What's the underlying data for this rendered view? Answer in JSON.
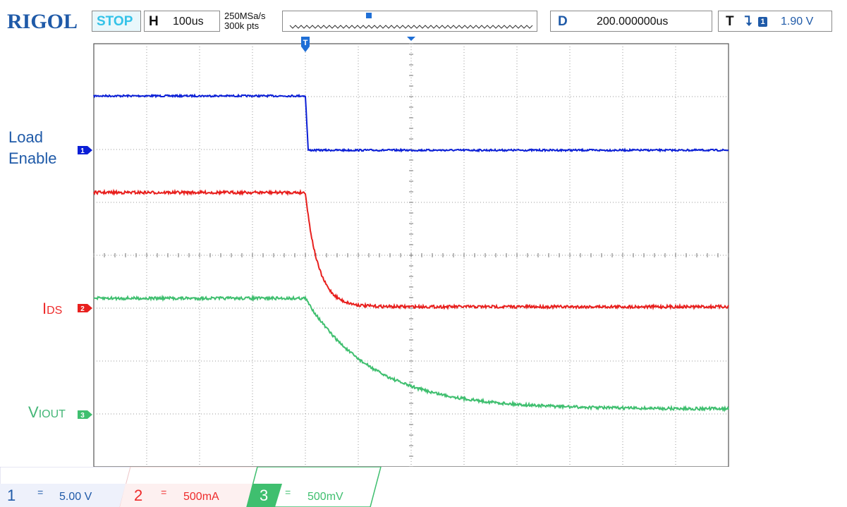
{
  "topbar": {
    "brand": "RIGOL",
    "run_state": "STOP",
    "timebase_label": "H",
    "timebase_value": "100us",
    "sample_rate": "250MSa/s",
    "memory_depth": "300k pts",
    "delay_label": "D",
    "delay_value": "200.000000us",
    "trigger_label": "T",
    "trigger_edge": "⮧",
    "trigger_channel": "1",
    "trigger_level": "1.90 V"
  },
  "screen": {
    "trigger_marker": "T",
    "labels": {
      "load_line1": "Load",
      "load_line2": "Enable",
      "ids_main": "I",
      "ids_sub": "DS",
      "vout_main": "V",
      "vout_sub": "IOUT"
    },
    "channel_markers": {
      "ch1": "1",
      "ch2": "2",
      "ch3": "3"
    }
  },
  "channels": [
    {
      "number": "1",
      "coupling": "=",
      "scale": "5.00 V",
      "color": "#1f5aa8"
    },
    {
      "number": "2",
      "coupling": "=",
      "scale": "500mA",
      "color": "#ee2b2b"
    },
    {
      "number": "3",
      "coupling": "=",
      "scale": "500mV",
      "color": "#44b677"
    }
  ],
  "colors": {
    "ch1": "#0b1fd6",
    "ch2": "#e8201e",
    "ch3": "#3fbf6f",
    "grid": "#8a8a8a",
    "brand": "#1f5aa8"
  }
}
